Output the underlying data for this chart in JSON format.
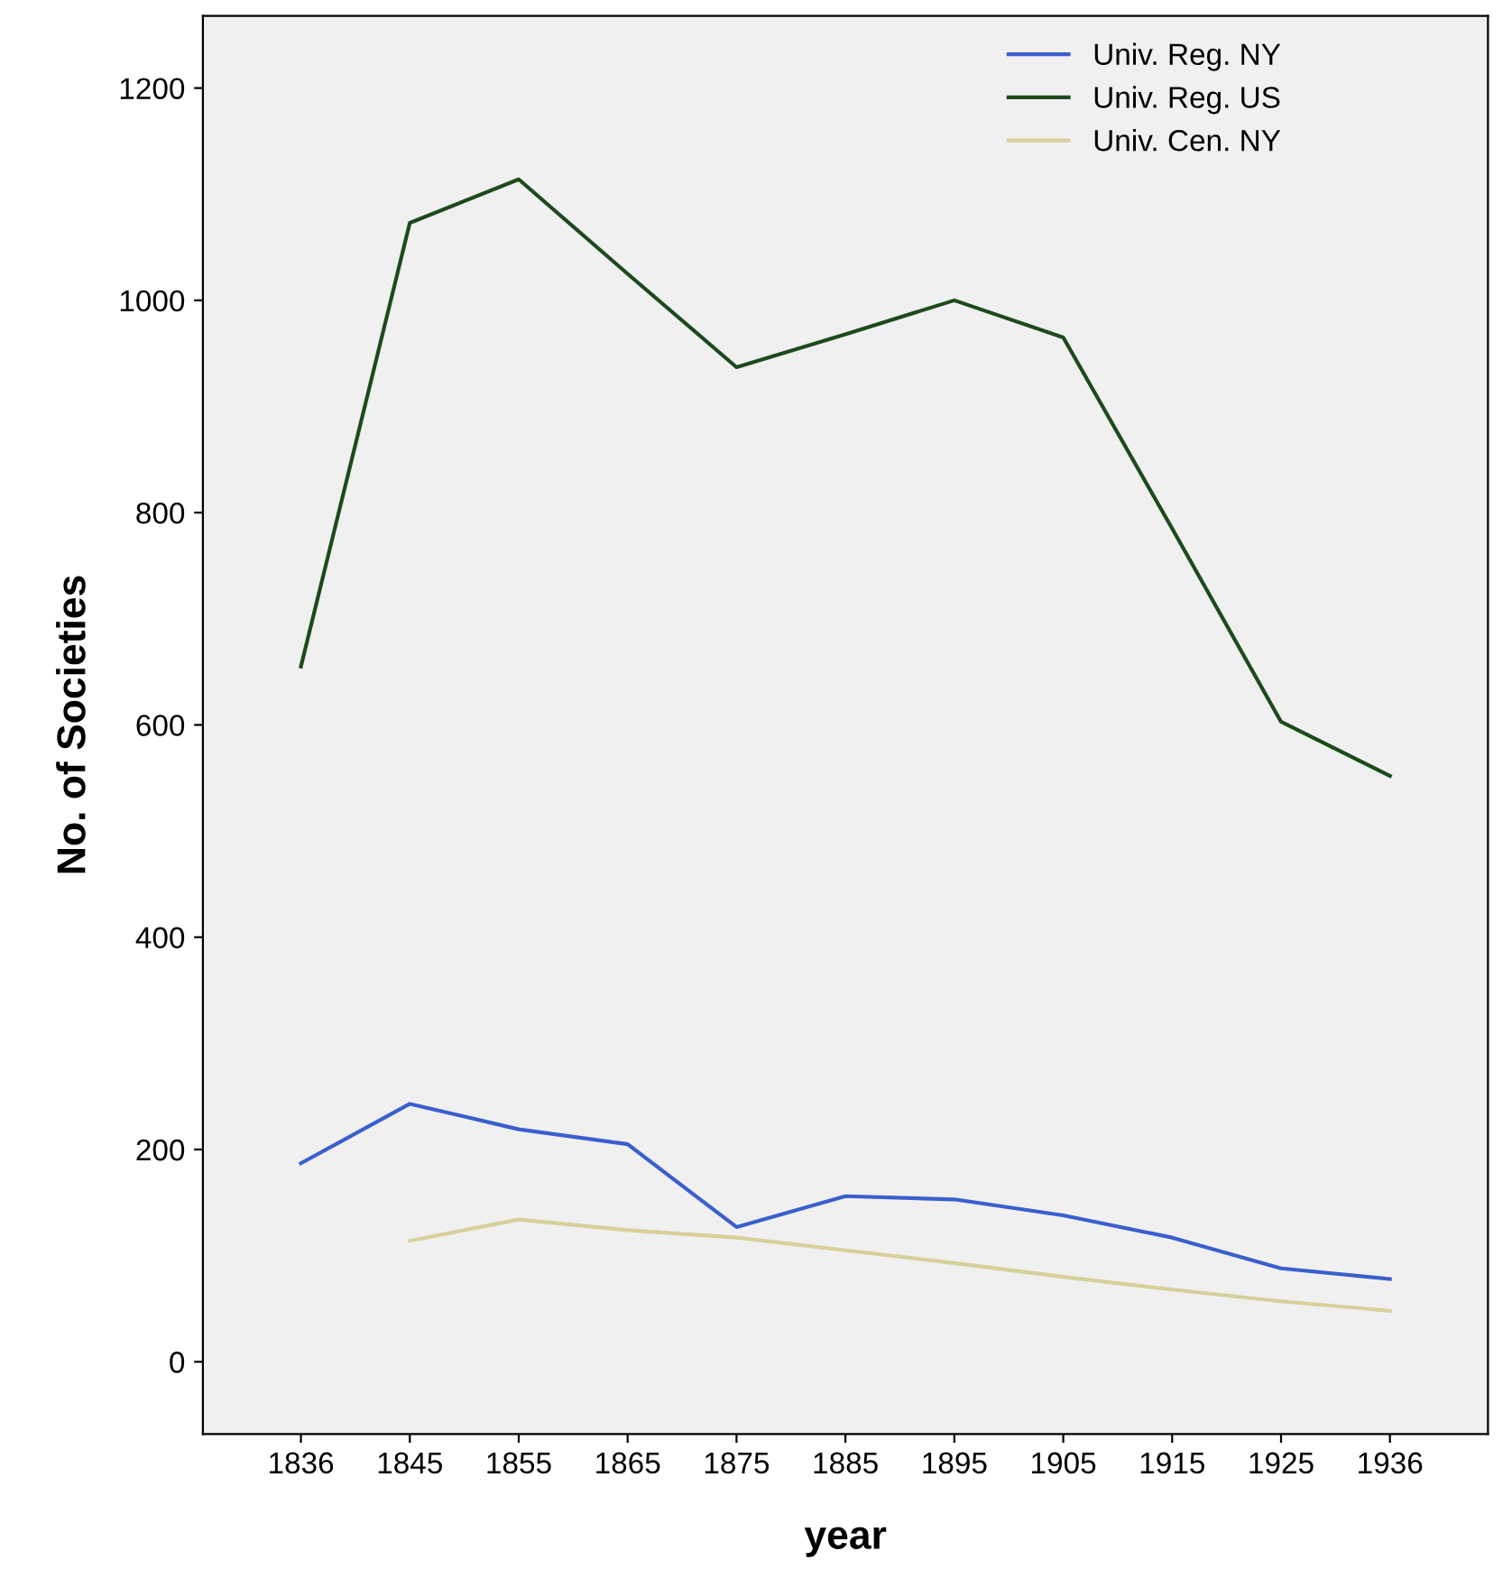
{
  "chart_data": {
    "type": "line",
    "xlabel": "year",
    "ylabel": "No. of Societies",
    "categories": [
      "1836",
      "1845",
      "1855",
      "1865",
      "1875",
      "1885",
      "1895",
      "1905",
      "1915",
      "1925",
      "1936"
    ],
    "series": [
      {
        "name": "Univ. Reg. NY",
        "color": "#3a5fcd",
        "values": [
          187,
          243,
          219,
          205,
          127,
          156,
          153,
          138,
          117,
          88,
          78
        ]
      },
      {
        "name": "Univ. Reg. US",
        "color": "#1d4a1d",
        "values": [
          655,
          1073,
          1114,
          1025,
          937,
          968,
          1000,
          965,
          785,
          603,
          552
        ]
      },
      {
        "name": "Univ. Cen. NY",
        "color": "#d8cf9a",
        "values": [
          null,
          114,
          134,
          124,
          117,
          105,
          93,
          80,
          68,
          57,
          48
        ]
      }
    ],
    "ylim": [
      -68,
      1268
    ],
    "yticks": [
      0,
      200,
      400,
      600,
      800,
      1000,
      1200
    ],
    "grid": false,
    "legend": "top right",
    "line_style": "solid",
    "marker": "none"
  }
}
